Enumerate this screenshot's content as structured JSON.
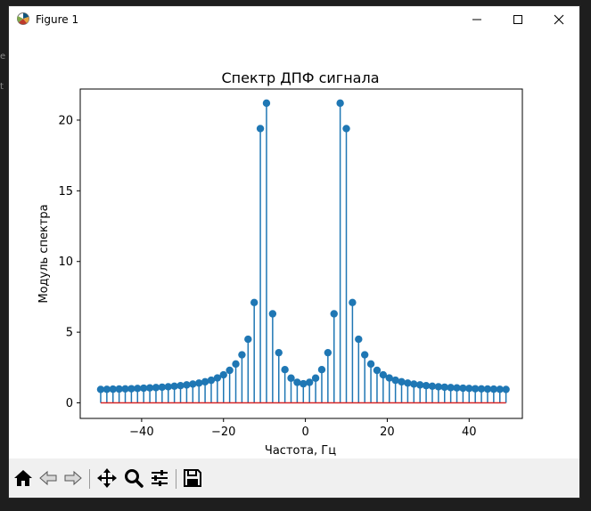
{
  "window": {
    "title": "Figure 1"
  },
  "chart_data": {
    "type": "stem",
    "title": "Спектр ДПФ сигнала",
    "xlabel": "Частота, Гц",
    "ylabel": "Модуль спектра",
    "xlim": [
      -55,
      53
    ],
    "ylim": [
      -1.1,
      22.2
    ],
    "xticks": [
      -40,
      -20,
      0,
      20,
      40
    ],
    "xtick_labels": [
      "−40",
      "−20",
      "0",
      "20",
      "40"
    ],
    "yticks": [
      0,
      5,
      10,
      15,
      20
    ],
    "ytick_labels": [
      "0",
      "5",
      "10",
      "15",
      "20"
    ],
    "x": [
      -50,
      -48.5,
      -47,
      -45.5,
      -44,
      -42.5,
      -41,
      -39.5,
      -38,
      -36.5,
      -35,
      -33.5,
      -32,
      -30.5,
      -29,
      -27.5,
      -26,
      -24.5,
      -23,
      -21.5,
      -20,
      -18.5,
      -17,
      -15.5,
      -14,
      -12.5,
      -11,
      -9.5,
      -8,
      -6.5,
      -5,
      -3.5,
      -2,
      -0.5,
      1,
      2.5,
      4,
      5.5,
      7,
      8.5,
      10,
      11.5,
      13,
      14.5,
      16,
      17.5,
      19,
      20.5,
      22,
      23.5,
      25,
      26.5,
      28,
      29.5,
      31,
      32.5,
      34,
      35.5,
      37,
      38.5,
      40,
      41.5,
      43,
      44.5,
      46,
      47.5,
      49
    ],
    "values": [
      0.95,
      0.96,
      0.97,
      0.98,
      0.99,
      1.0,
      1.02,
      1.04,
      1.06,
      1.08,
      1.11,
      1.14,
      1.18,
      1.22,
      1.27,
      1.33,
      1.4,
      1.49,
      1.6,
      1.76,
      1.98,
      2.3,
      2.75,
      3.4,
      4.5,
      7.1,
      19.4,
      21.2,
      6.3,
      3.55,
      2.35,
      1.75,
      1.45,
      1.35,
      1.45,
      1.75,
      2.35,
      3.55,
      6.3,
      21.2,
      19.4,
      7.1,
      4.5,
      3.4,
      2.75,
      2.3,
      1.98,
      1.76,
      1.6,
      1.49,
      1.4,
      1.33,
      1.27,
      1.22,
      1.18,
      1.14,
      1.11,
      1.08,
      1.06,
      1.04,
      1.02,
      1.0,
      0.99,
      0.98,
      0.97,
      0.96,
      0.95
    ],
    "baseline": 0,
    "stem_color": "#1f77b4",
    "baseline_color": "#d62728"
  },
  "toolbar": {
    "icons": [
      "home-icon",
      "back-arrow-icon",
      "forward-arrow-icon",
      "pan-icon",
      "zoom-icon",
      "configure-subplots-icon",
      "save-icon"
    ]
  }
}
